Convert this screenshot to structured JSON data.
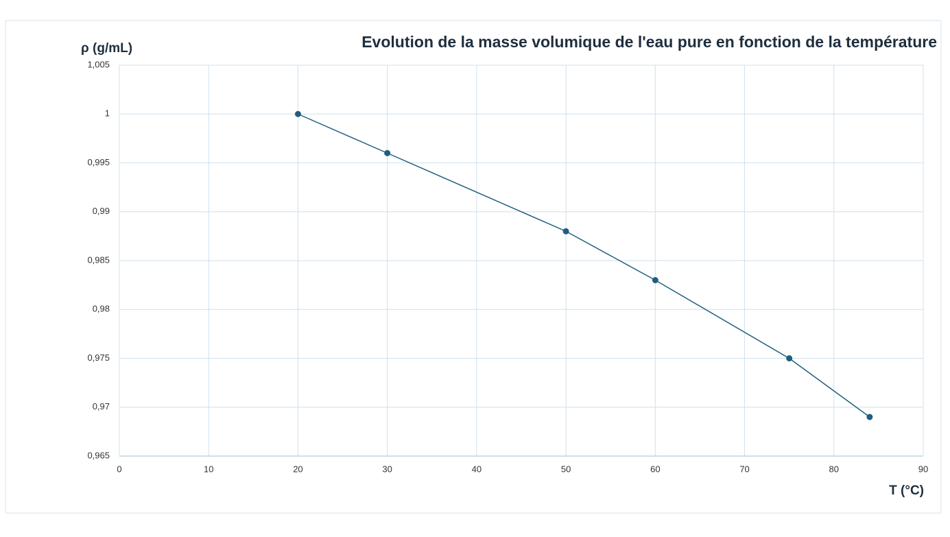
{
  "chart_data": {
    "type": "line",
    "title": "Evolution de la masse volumique de l'eau pure en fonction de la température",
    "y_label": "ρ (g/mL)",
    "x_label": "T (°C)",
    "x": [
      20,
      30,
      50,
      60,
      75,
      84
    ],
    "values": [
      1,
      0.996,
      0.988,
      0.983,
      0.975,
      0.969
    ],
    "color": "#1f5f7f",
    "xlim": [
      0,
      90
    ],
    "xticks": [
      0,
      10,
      20,
      30,
      40,
      50,
      60,
      70,
      80,
      90
    ],
    "ylim": [
      0.965,
      1.005
    ],
    "yticks": [
      {
        "value": 0.965,
        "label": "0,965"
      },
      {
        "value": 0.97,
        "label": "0,97"
      },
      {
        "value": 0.975,
        "label": "0,975"
      },
      {
        "value": 0.98,
        "label": "0,98"
      },
      {
        "value": 0.985,
        "label": "0,985"
      },
      {
        "value": 0.99,
        "label": "0,99"
      },
      {
        "value": 0.995,
        "label": "0,995"
      },
      1,
      {
        "value": 1.005,
        "label": "1,005"
      }
    ],
    "grid": true
  }
}
